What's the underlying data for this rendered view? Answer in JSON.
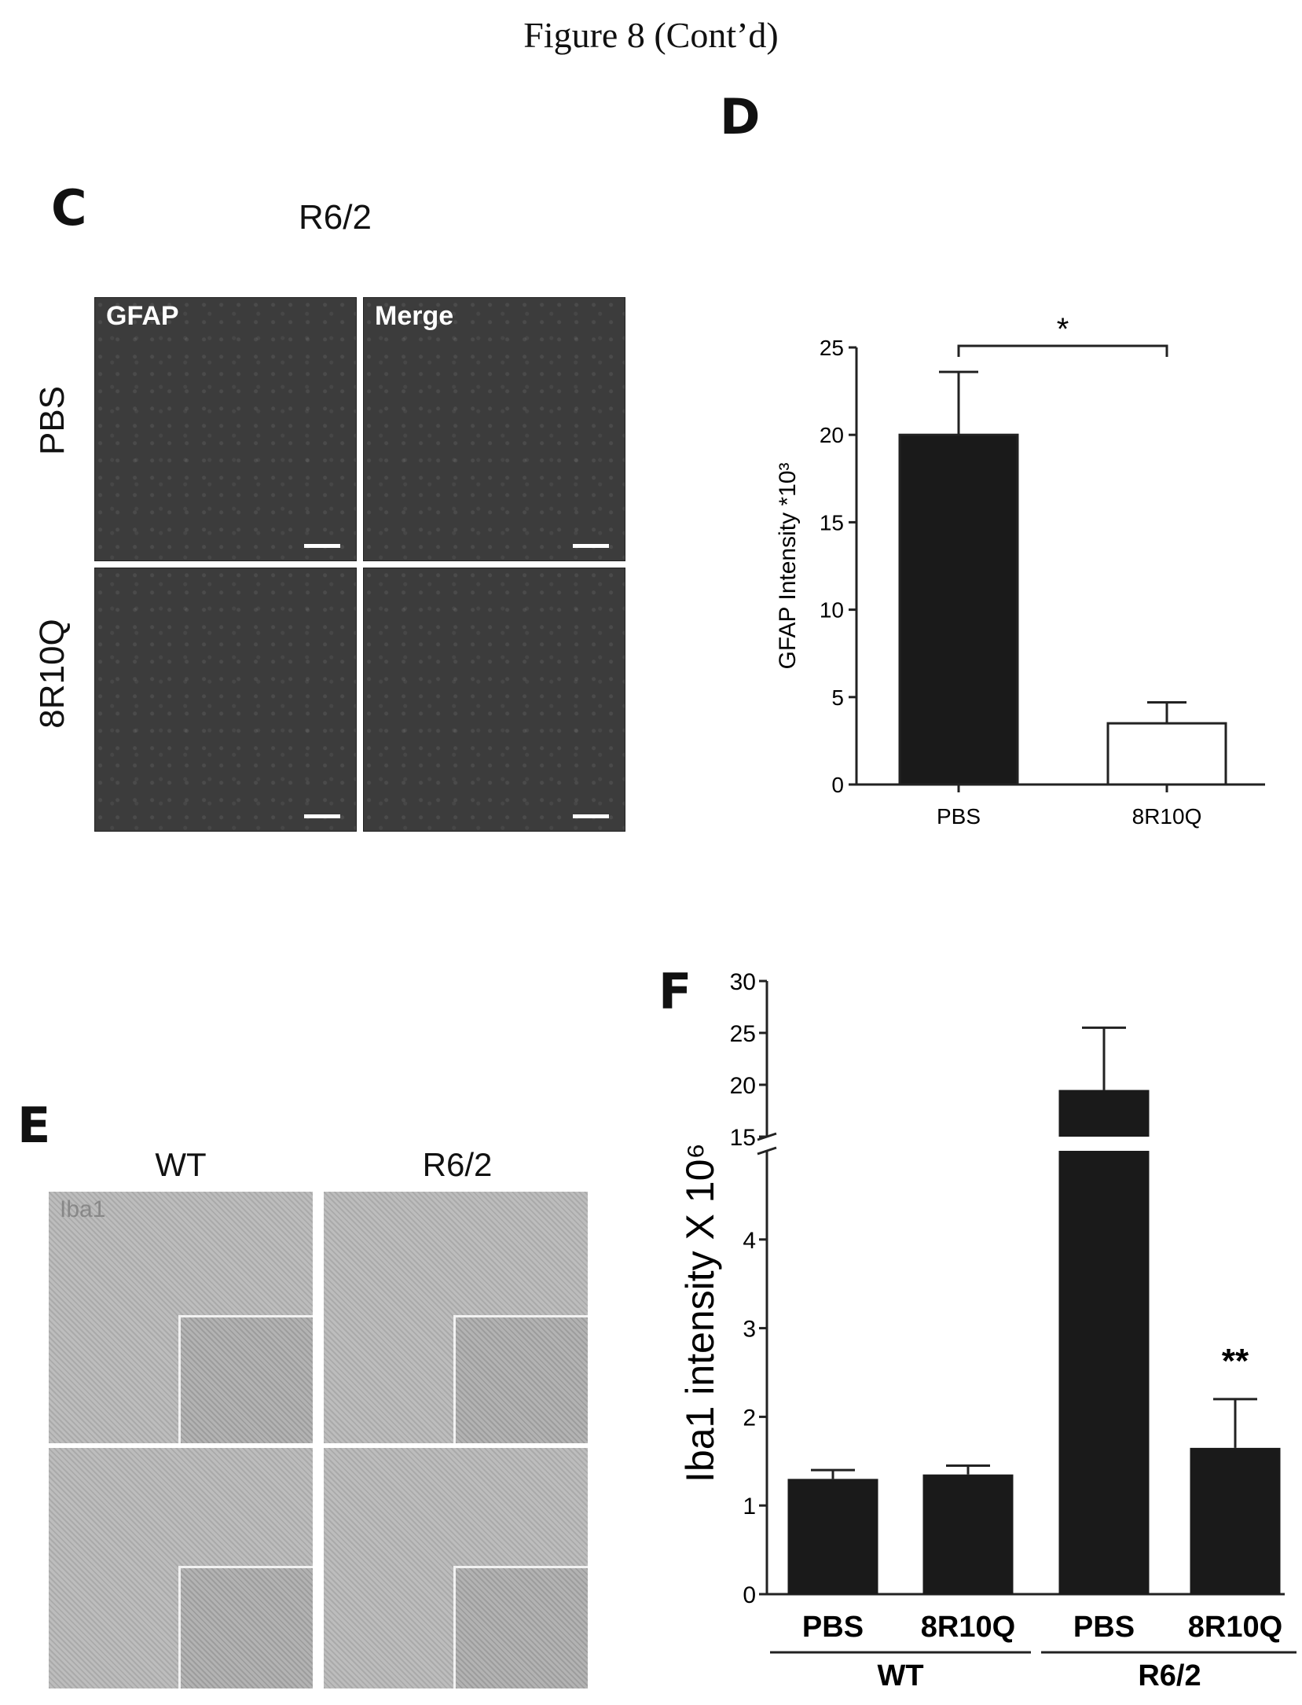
{
  "figure": {
    "title": "Figure 8 (Cont’d)"
  },
  "panel_c": {
    "letter": "C",
    "title": "R6/2",
    "row_labels": [
      "PBS",
      "8R10Q"
    ],
    "column_tags": [
      "GFAP",
      "Merge"
    ]
  },
  "panel_d": {
    "letter": "D"
  },
  "panel_e": {
    "letter": "E",
    "column_headers": [
      "WT",
      "R6/2"
    ],
    "stain_tag": "Iba1"
  },
  "panel_f": {
    "letter": "F"
  },
  "chart_data": [
    {
      "panel": "D",
      "type": "bar",
      "categories": [
        "PBS",
        "8R10Q"
      ],
      "values": [
        20,
        3.5
      ],
      "errors": [
        3.6,
        1.2
      ],
      "bar_colors": [
        "#1a1a1a",
        "#ffffff"
      ],
      "ylabel": "GFAP Intensity *10³",
      "ylim": [
        0,
        25
      ],
      "yticks": [
        0,
        5,
        10,
        15,
        20,
        25
      ],
      "significance": {
        "between": [
          0,
          1
        ],
        "label": "*"
      },
      "grid": false
    },
    {
      "panel": "F",
      "type": "bar",
      "categories": [
        "PBS",
        "8R10Q",
        "PBS",
        "8R10Q"
      ],
      "groups": [
        {
          "label": "WT",
          "members": [
            0,
            1
          ]
        },
        {
          "label": "R6/2",
          "members": [
            2,
            3
          ]
        }
      ],
      "values": [
        1.3,
        1.35,
        19.5,
        1.65
      ],
      "errors": [
        0.1,
        0.1,
        6.0,
        0.55
      ],
      "bar_color": "#1a1a1a",
      "ylabel": "Iba1 intensity X 10⁶",
      "axis_break": {
        "lower_range": [
          0,
          5
        ],
        "upper_range": [
          15,
          30
        ]
      },
      "yticks_lower": [
        0,
        1,
        2,
        3,
        4
      ],
      "yticks_upper": [
        15,
        20,
        25,
        30
      ],
      "annotations": [
        {
          "bar": 3,
          "label": "**"
        }
      ],
      "grid": false
    }
  ]
}
